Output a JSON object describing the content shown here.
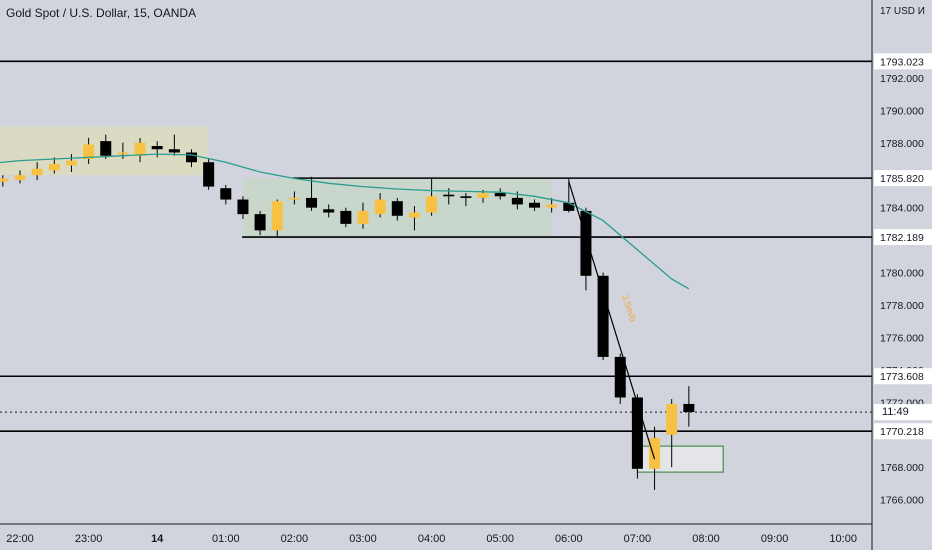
{
  "header": {
    "title": "Gold Spot / U.S. Dollar, 15, OANDA",
    "currency": "17 USD И"
  },
  "countdown": "11:49",
  "annotation": "3.5m/b",
  "chart_data": {
    "type": "candlestick",
    "title": "Gold Spot / U.S. Dollar, 15, OANDA",
    "ylim": [
      1764.5,
      1796.8
    ],
    "y_ticks": [
      "1766.000",
      "1768.000",
      "1770.000",
      "1772.000",
      "1774.000",
      "1776.000",
      "1778.000",
      "1780.000",
      "1782.000",
      "1784.000",
      "1786.000",
      "1788.000",
      "1790.000",
      "1792.000"
    ],
    "x_ticks": [
      "22:00",
      "23:00",
      "14",
      "01:00",
      "02:00",
      "03:00",
      "04:00",
      "05:00",
      "06:00",
      "07:00",
      "08:00",
      "09:00",
      "10:00"
    ],
    "price_lines": [
      {
        "label": "1793.023",
        "value": 1793.023
      },
      {
        "label": "1785.820",
        "value": 1785.82
      },
      {
        "label": "1782.189",
        "value": 1782.189
      },
      {
        "label": "1773.608",
        "value": 1773.608
      },
      {
        "label": "1770.218",
        "value": 1770.218
      }
    ],
    "current_price": {
      "label": "1771.396",
      "value": 1771.396
    },
    "candles": [
      {
        "t": "21:45",
        "o": 1785.6,
        "h": 1786.0,
        "l": 1785.3,
        "c": 1785.8
      },
      {
        "t": "22:00",
        "o": 1785.7,
        "h": 1786.3,
        "l": 1785.5,
        "c": 1786.0
      },
      {
        "t": "22:15",
        "o": 1786.0,
        "h": 1786.8,
        "l": 1785.7,
        "c": 1786.4
      },
      {
        "t": "22:30",
        "o": 1786.3,
        "h": 1787.1,
        "l": 1786.1,
        "c": 1786.7
      },
      {
        "t": "22:45",
        "o": 1786.6,
        "h": 1787.3,
        "l": 1786.2,
        "c": 1786.9
      },
      {
        "t": "23:00",
        "o": 1787.0,
        "h": 1788.3,
        "l": 1786.7,
        "c": 1787.9
      },
      {
        "t": "23:15",
        "o": 1788.1,
        "h": 1788.5,
        "l": 1787.0,
        "c": 1787.2
      },
      {
        "t": "23:30",
        "o": 1787.3,
        "h": 1788.0,
        "l": 1787.0,
        "c": 1787.4
      },
      {
        "t": "23:45",
        "o": 1787.2,
        "h": 1788.3,
        "l": 1786.8,
        "c": 1788.0
      },
      {
        "t": "00:00",
        "o": 1787.8,
        "h": 1788.1,
        "l": 1787.1,
        "c": 1787.6
      },
      {
        "t": "00:15",
        "o": 1787.6,
        "h": 1788.5,
        "l": 1787.2,
        "c": 1787.4
      },
      {
        "t": "00:30",
        "o": 1787.4,
        "h": 1787.6,
        "l": 1786.5,
        "c": 1786.8
      },
      {
        "t": "00:45",
        "o": 1786.8,
        "h": 1787.0,
        "l": 1785.1,
        "c": 1785.3
      },
      {
        "t": "01:00",
        "o": 1785.2,
        "h": 1785.4,
        "l": 1784.2,
        "c": 1784.5
      },
      {
        "t": "01:15",
        "o": 1784.5,
        "h": 1784.7,
        "l": 1783.3,
        "c": 1783.6
      },
      {
        "t": "01:30",
        "o": 1783.6,
        "h": 1783.8,
        "l": 1782.3,
        "c": 1782.6
      },
      {
        "t": "01:45",
        "o": 1782.6,
        "h": 1784.5,
        "l": 1782.2,
        "c": 1784.4
      },
      {
        "t": "02:00",
        "o": 1784.5,
        "h": 1785.0,
        "l": 1784.2,
        "c": 1784.6
      },
      {
        "t": "02:15",
        "o": 1784.6,
        "h": 1785.9,
        "l": 1783.8,
        "c": 1784.0
      },
      {
        "t": "02:30",
        "o": 1783.9,
        "h": 1784.2,
        "l": 1783.4,
        "c": 1783.7
      },
      {
        "t": "02:45",
        "o": 1783.8,
        "h": 1784.0,
        "l": 1782.8,
        "c": 1783.0
      },
      {
        "t": "03:00",
        "o": 1783.0,
        "h": 1784.3,
        "l": 1782.7,
        "c": 1783.8
      },
      {
        "t": "03:15",
        "o": 1783.6,
        "h": 1784.9,
        "l": 1783.4,
        "c": 1784.5
      },
      {
        "t": "03:30",
        "o": 1784.4,
        "h": 1784.6,
        "l": 1783.2,
        "c": 1783.5
      },
      {
        "t": "03:45",
        "o": 1783.4,
        "h": 1784.1,
        "l": 1782.6,
        "c": 1783.7
      },
      {
        "t": "04:00",
        "o": 1783.7,
        "h": 1785.8,
        "l": 1783.5,
        "c": 1784.7
      },
      {
        "t": "04:15",
        "o": 1784.8,
        "h": 1785.2,
        "l": 1784.2,
        "c": 1784.7
      },
      {
        "t": "04:30",
        "o": 1784.7,
        "h": 1784.9,
        "l": 1784.1,
        "c": 1784.6
      },
      {
        "t": "04:45",
        "o": 1784.6,
        "h": 1785.1,
        "l": 1784.3,
        "c": 1784.9
      },
      {
        "t": "05:00",
        "o": 1784.9,
        "h": 1785.2,
        "l": 1784.5,
        "c": 1784.7
      },
      {
        "t": "05:15",
        "o": 1784.6,
        "h": 1785.0,
        "l": 1783.9,
        "c": 1784.2
      },
      {
        "t": "05:30",
        "o": 1784.3,
        "h": 1784.5,
        "l": 1783.8,
        "c": 1784.0
      },
      {
        "t": "05:45",
        "o": 1784.0,
        "h": 1784.6,
        "l": 1783.7,
        "c": 1784.2
      },
      {
        "t": "06:00",
        "o": 1784.3,
        "h": 1785.8,
        "l": 1783.7,
        "c": 1783.8
      },
      {
        "t": "06:15",
        "o": 1783.8,
        "h": 1784.0,
        "l": 1778.9,
        "c": 1779.8
      },
      {
        "t": "06:30",
        "o": 1779.8,
        "h": 1780.0,
        "l": 1774.6,
        "c": 1774.8
      },
      {
        "t": "06:45",
        "o": 1774.8,
        "h": 1775.0,
        "l": 1771.9,
        "c": 1772.3
      },
      {
        "t": "07:00",
        "o": 1772.3,
        "h": 1772.5,
        "l": 1767.3,
        "c": 1767.9
      },
      {
        "t": "07:15",
        "o": 1767.9,
        "h": 1770.5,
        "l": 1766.6,
        "c": 1769.8
      },
      {
        "t": "07:30",
        "o": 1770.0,
        "h": 1772.2,
        "l": 1768.0,
        "c": 1771.9
      },
      {
        "t": "07:45",
        "o": 1771.9,
        "h": 1773.0,
        "l": 1770.5,
        "c": 1771.4
      }
    ],
    "moving_average": [
      {
        "t": "21:30",
        "v": 1786.7
      },
      {
        "t": "22:00",
        "v": 1786.9
      },
      {
        "t": "22:30",
        "v": 1787.0
      },
      {
        "t": "23:00",
        "v": 1787.1
      },
      {
        "t": "23:30",
        "v": 1787.2
      },
      {
        "t": "00:00",
        "v": 1787.3
      },
      {
        "t": "00:30",
        "v": 1787.25
      },
      {
        "t": "01:00",
        "v": 1786.8
      },
      {
        "t": "01:30",
        "v": 1786.2
      },
      {
        "t": "02:00",
        "v": 1785.8
      },
      {
        "t": "02:30",
        "v": 1785.5
      },
      {
        "t": "03:00",
        "v": 1785.3
      },
      {
        "t": "03:30",
        "v": 1785.15
      },
      {
        "t": "04:00",
        "v": 1785.05
      },
      {
        "t": "04:30",
        "v": 1785.0
      },
      {
        "t": "05:00",
        "v": 1784.95
      },
      {
        "t": "05:30",
        "v": 1784.7
      },
      {
        "t": "06:00",
        "v": 1784.3
      },
      {
        "t": "06:30",
        "v": 1783.2
      },
      {
        "t": "07:00",
        "v": 1781.4
      },
      {
        "t": "07:30",
        "v": 1779.6
      },
      {
        "t": "07:45",
        "v": 1779.0
      }
    ],
    "zones": [
      {
        "name": "asia-range",
        "t0": "21:15",
        "t1": "00:45",
        "y0": 1786.0,
        "y1": 1789.0,
        "color": "#dcdcc0"
      },
      {
        "name": "consolidation-range",
        "t0": "01:15",
        "t1": "05:45",
        "y0": 1782.2,
        "y1": 1785.8,
        "color": "#c6d6ca"
      },
      {
        "name": "target-box",
        "t0": "07:00",
        "t1": "08:15",
        "y0": 1767.7,
        "y1": 1769.3,
        "color": "#e4e7ea"
      }
    ],
    "trendline": {
      "t0": "06:00",
      "y0": 1785.6,
      "t1": "07:15",
      "y1": 1768.5
    },
    "colors": {
      "up": "#f7c244",
      "down": "#000000",
      "ma": "#2a9d8f",
      "background": "#d1d4dc"
    }
  }
}
